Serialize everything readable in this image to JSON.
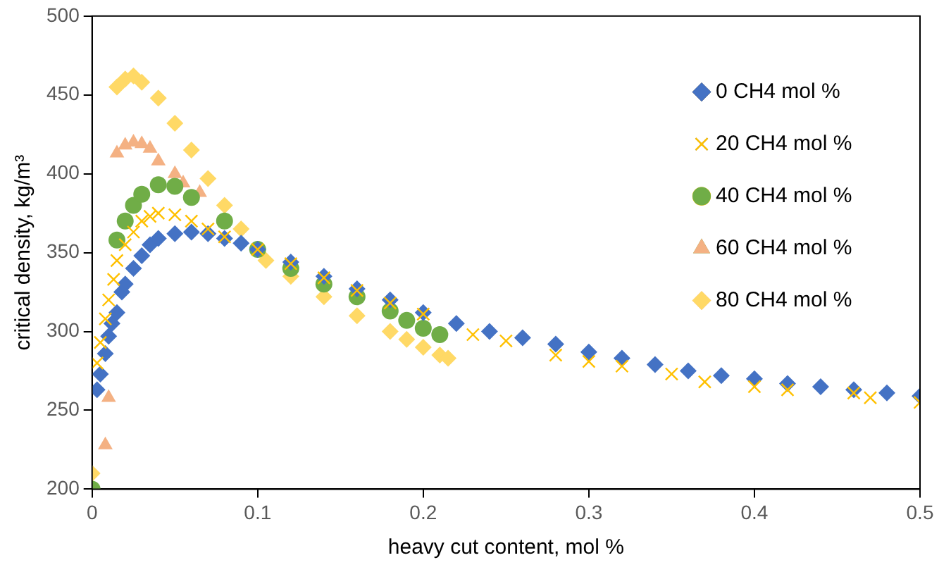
{
  "chart_data": {
    "type": "scatter",
    "xlabel": "heavy cut content, mol %",
    "ylabel": "critical density, kg/m³",
    "xlim": [
      0,
      0.5
    ],
    "xticks": [
      0,
      0.1,
      0.2,
      0.3,
      0.4,
      0.5
    ],
    "ylim": [
      200,
      500
    ],
    "yticks": [
      200,
      250,
      300,
      350,
      400,
      450,
      500
    ],
    "grid": false,
    "legend": "right",
    "series": [
      {
        "name": "0 CH4 mol %",
        "color": "#4472c4",
        "marker": "diamond",
        "x": [
          0.003,
          0.005,
          0.008,
          0.01,
          0.012,
          0.015,
          0.018,
          0.02,
          0.025,
          0.03,
          0.035,
          0.04,
          0.05,
          0.06,
          0.07,
          0.08,
          0.09,
          0.1,
          0.12,
          0.14,
          0.16,
          0.18,
          0.2,
          0.22,
          0.24,
          0.26,
          0.28,
          0.3,
          0.32,
          0.34,
          0.36,
          0.38,
          0.4,
          0.42,
          0.44,
          0.46,
          0.48,
          0.5
        ],
        "values": [
          263,
          273,
          286,
          297,
          305,
          312,
          325,
          330,
          340,
          348,
          355,
          359,
          362,
          363,
          362,
          359,
          356,
          352,
          344,
          335,
          327,
          320,
          312,
          305,
          300,
          296,
          292,
          287,
          283,
          279,
          275,
          272,
          270,
          267,
          265,
          263,
          261,
          259
        ]
      },
      {
        "name": "20 CH4 mol %",
        "color": "#ffc000",
        "marker": "cross",
        "x": [
          0.003,
          0.005,
          0.008,
          0.01,
          0.013,
          0.015,
          0.02,
          0.025,
          0.03,
          0.035,
          0.04,
          0.05,
          0.06,
          0.07,
          0.08,
          0.1,
          0.12,
          0.14,
          0.16,
          0.18,
          0.2,
          0.23,
          0.25,
          0.28,
          0.3,
          0.32,
          0.35,
          0.37,
          0.4,
          0.42,
          0.46,
          0.47,
          0.5
        ],
        "values": [
          280,
          293,
          308,
          320,
          333,
          345,
          355,
          363,
          370,
          373,
          375,
          374,
          370,
          365,
          360,
          352,
          343,
          334,
          326,
          318,
          311,
          298,
          294,
          285,
          281,
          278,
          273,
          268,
          265,
          263,
          261,
          258,
          255
        ]
      },
      {
        "name": "40 CH4 mol %",
        "color": "#70ad47",
        "marker": "circle",
        "x": [
          0,
          0.015,
          0.02,
          0.025,
          0.03,
          0.04,
          0.05,
          0.06,
          0.08,
          0.1,
          0.12,
          0.14,
          0.16,
          0.18,
          0.19,
          0.2,
          0.21
        ],
        "values": [
          200,
          358,
          370,
          380,
          387,
          393,
          392,
          385,
          370,
          352,
          340,
          330,
          322,
          313,
          307,
          302,
          298
        ]
      },
      {
        "name": "60 CH4 mol %",
        "color": "#f4b183",
        "marker": "triangle",
        "x": [
          0.008,
          0.01,
          0.015,
          0.02,
          0.025,
          0.03,
          0.035,
          0.04,
          0.05,
          0.055,
          0.065
        ],
        "values": [
          228,
          258,
          413,
          418,
          420,
          419,
          416,
          408,
          400,
          394,
          388
        ]
      },
      {
        "name": "80 CH4 mol %",
        "color": "#ffd966",
        "marker": "diamond",
        "x": [
          0,
          0.015,
          0.02,
          0.025,
          0.03,
          0.04,
          0.05,
          0.06,
          0.07,
          0.08,
          0.09,
          0.105,
          0.12,
          0.14,
          0.16,
          0.18,
          0.19,
          0.2,
          0.21,
          0.215
        ],
        "values": [
          210,
          455,
          460,
          462,
          458,
          448,
          432,
          415,
          397,
          380,
          365,
          345,
          335,
          322,
          310,
          300,
          295,
          290,
          285,
          283
        ]
      }
    ]
  }
}
